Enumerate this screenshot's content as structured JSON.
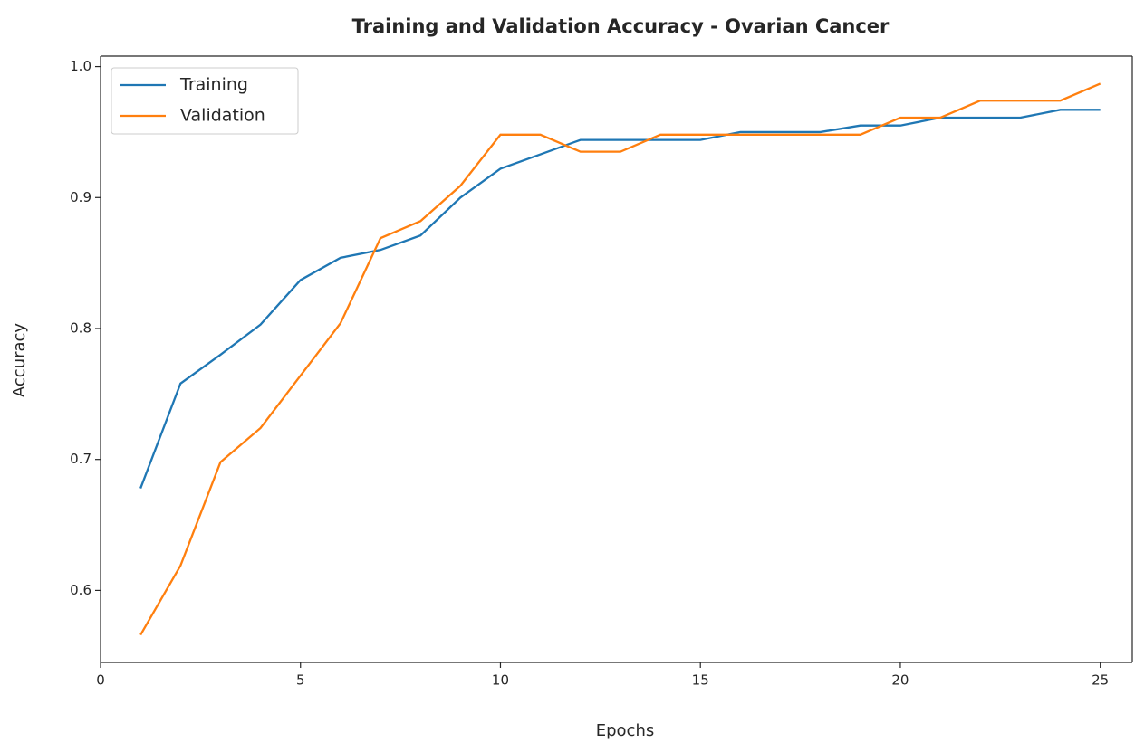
{
  "chart_data": {
    "type": "line",
    "title": "Training and Validation Accuracy - Ovarian Cancer",
    "xlabel": "Epochs",
    "ylabel": "Accuracy",
    "x": [
      1,
      2,
      3,
      4,
      5,
      6,
      7,
      8,
      9,
      10,
      11,
      12,
      13,
      14,
      15,
      16,
      17,
      18,
      19,
      20,
      21,
      22,
      23,
      24,
      25
    ],
    "series": [
      {
        "name": "Training",
        "color": "#1f77b4",
        "values": [
          0.678,
          0.758,
          0.78,
          0.803,
          0.837,
          0.854,
          0.86,
          0.871,
          0.9,
          0.922,
          0.933,
          0.944,
          0.944,
          0.944,
          0.944,
          0.95,
          0.95,
          0.95,
          0.955,
          0.955,
          0.961,
          0.961,
          0.961,
          0.967,
          0.967
        ]
      },
      {
        "name": "Validation",
        "color": "#ff7f0e",
        "values": [
          0.566,
          0.619,
          0.698,
          0.724,
          0.764,
          0.804,
          0.869,
          0.882,
          0.909,
          0.948,
          0.948,
          0.935,
          0.935,
          0.948,
          0.948,
          0.948,
          0.948,
          0.948,
          0.948,
          0.961,
          0.961,
          0.974,
          0.974,
          0.974,
          0.987
        ]
      }
    ],
    "xlim": [
      0,
      25.8
    ],
    "xticks": [
      0,
      5,
      10,
      15,
      20,
      25
    ],
    "ylim": [
      0.545,
      1.008
    ],
    "yticks": [
      0.6,
      0.7,
      0.8,
      0.9,
      {
        "value": 1.0,
        "label": "1.0"
      }
    ],
    "legend": "upper left"
  }
}
